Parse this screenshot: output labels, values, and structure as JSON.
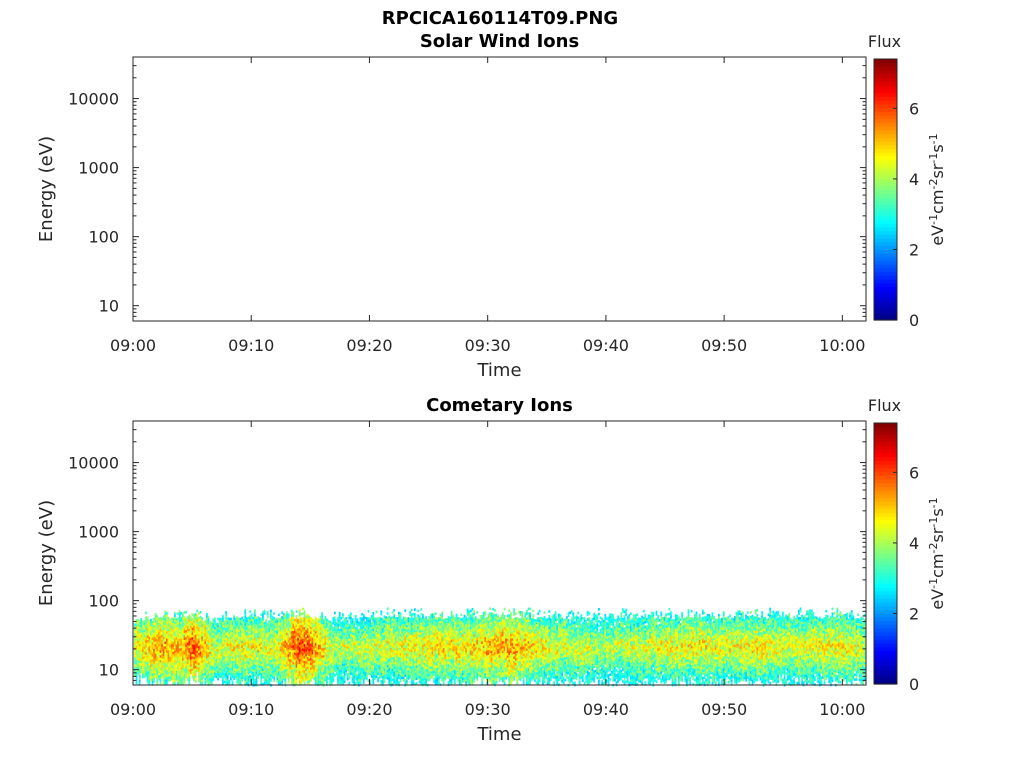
{
  "figure": {
    "title": "RPCICA160114T09.PNG"
  },
  "chart_data": [
    {
      "type": "heatmap",
      "title": "Solar Wind Ions",
      "xlabel": "Time",
      "ylabel": "Energy (eV)",
      "y_scale": "log",
      "ylim": [
        6,
        40000
      ],
      "xlim": [
        "09:00",
        "10:02"
      ],
      "x_ticks": [
        "09:00",
        "09:10",
        "09:20",
        "09:30",
        "09:40",
        "09:50",
        "10:00"
      ],
      "y_ticks": [
        "10",
        "100",
        "1000",
        "10000"
      ],
      "colorbar": {
        "title": "Flux",
        "label": "eV-1cm-2sr-1s-1",
        "label_parts": [
          {
            "t": "eV",
            "sup": false
          },
          {
            "t": "-1",
            "sup": true
          },
          {
            "t": "cm",
            "sup": false
          },
          {
            "t": "-2",
            "sup": true
          },
          {
            "t": "sr",
            "sup": false
          },
          {
            "t": "-1",
            "sup": true
          },
          {
            "t": "s",
            "sup": false
          },
          {
            "t": "-1",
            "sup": true
          }
        ],
        "ticks": [
          "0",
          "2",
          "4",
          "6"
        ],
        "range": [
          0,
          7.4
        ],
        "colormap": "jet"
      },
      "data": []
    },
    {
      "type": "heatmap",
      "title": "Cometary Ions",
      "xlabel": "Time",
      "ylabel": "Energy (eV)",
      "y_scale": "log",
      "ylim": [
        6,
        40000
      ],
      "xlim": [
        "09:00",
        "10:02"
      ],
      "x_ticks": [
        "09:00",
        "09:10",
        "09:20",
        "09:30",
        "09:40",
        "09:50",
        "10:00"
      ],
      "y_ticks": [
        "10",
        "100",
        "1000",
        "10000"
      ],
      "colorbar": {
        "title": "Flux",
        "label": "eV-1cm-2sr-1s-1",
        "label_parts": [
          {
            "t": "eV",
            "sup": false
          },
          {
            "t": "-1",
            "sup": true
          },
          {
            "t": "cm",
            "sup": false
          },
          {
            "t": "-2",
            "sup": true
          },
          {
            "t": "sr",
            "sup": false
          },
          {
            "t": "-1",
            "sup": true
          },
          {
            "t": "s",
            "sup": false
          },
          {
            "t": "-1",
            "sup": true
          }
        ],
        "ticks": [
          "0",
          "2",
          "4",
          "6"
        ],
        "range": [
          0,
          7.4
        ],
        "colormap": "jet"
      },
      "data": [
        {
          "t": "09:00",
          "e_min": 10,
          "e_max": 60,
          "flux_peak": 5.5
        },
        {
          "t": "09:02",
          "e_min": 8,
          "e_max": 80,
          "flux_peak": 6.2
        },
        {
          "t": "09:04",
          "e_min": 8,
          "e_max": 80,
          "flux_peak": 6.0
        },
        {
          "t": "09:05",
          "e_min": 10,
          "e_max": 80,
          "flux_peak": 6.8
        },
        {
          "t": "09:07",
          "e_min": 8,
          "e_max": 70,
          "flux_peak": 5.2
        },
        {
          "t": "09:09",
          "e_min": 8,
          "e_max": 80,
          "flux_peak": 5.6
        },
        {
          "t": "09:12",
          "e_min": 8,
          "e_max": 80,
          "flux_peak": 5.4
        },
        {
          "t": "09:14",
          "e_min": 8,
          "e_max": 80,
          "flux_peak": 7.0
        },
        {
          "t": "09:15",
          "e_min": 8,
          "e_max": 80,
          "flux_peak": 6.6
        },
        {
          "t": "09:17",
          "e_min": 8,
          "e_max": 70,
          "flux_peak": 5.0
        },
        {
          "t": "09:20",
          "e_min": 8,
          "e_max": 80,
          "flux_peak": 5.3
        },
        {
          "t": "09:23",
          "e_min": 8,
          "e_max": 80,
          "flux_peak": 5.5
        },
        {
          "t": "09:25",
          "e_min": 8,
          "e_max": 80,
          "flux_peak": 5.6
        },
        {
          "t": "09:28",
          "e_min": 8,
          "e_max": 80,
          "flux_peak": 5.7
        },
        {
          "t": "09:30",
          "e_min": 8,
          "e_max": 80,
          "flux_peak": 6.0
        },
        {
          "t": "09:32",
          "e_min": 8,
          "e_max": 80,
          "flux_peak": 6.2
        },
        {
          "t": "09:35",
          "e_min": 8,
          "e_max": 80,
          "flux_peak": 5.4
        },
        {
          "t": "09:38",
          "e_min": 8,
          "e_max": 80,
          "flux_peak": 5.2
        },
        {
          "t": "09:40",
          "e_min": 8,
          "e_max": 80,
          "flux_peak": 5.0
        },
        {
          "t": "09:43",
          "e_min": 8,
          "e_max": 80,
          "flux_peak": 5.3
        },
        {
          "t": "09:45",
          "e_min": 8,
          "e_max": 80,
          "flux_peak": 5.5
        },
        {
          "t": "09:48",
          "e_min": 8,
          "e_max": 80,
          "flux_peak": 5.6
        },
        {
          "t": "09:50",
          "e_min": 8,
          "e_max": 80,
          "flux_peak": 5.4
        },
        {
          "t": "09:53",
          "e_min": 8,
          "e_max": 80,
          "flux_peak": 5.6
        },
        {
          "t": "09:55",
          "e_min": 8,
          "e_max": 80,
          "flux_peak": 5.3
        },
        {
          "t": "09:58",
          "e_min": 8,
          "e_max": 80,
          "flux_peak": 5.5
        },
        {
          "t": "10:00",
          "e_min": 8,
          "e_max": 80,
          "flux_peak": 5.6
        },
        {
          "t": "10:02",
          "e_min": 8,
          "e_max": 80,
          "flux_peak": 5.2
        }
      ]
    }
  ]
}
